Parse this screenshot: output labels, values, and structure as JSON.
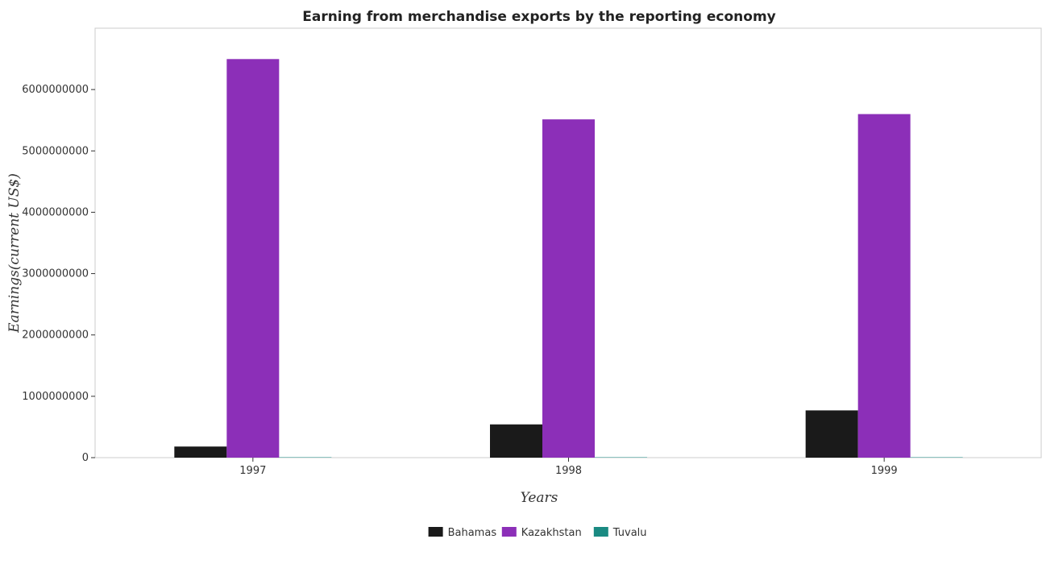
{
  "chart_data": {
    "type": "bar",
    "title": "Earning from merchandise exports by the reporting economy",
    "xlabel": "Years",
    "ylabel": "Earnings(current US$)",
    "categories": [
      "1997",
      "1998",
      "1999"
    ],
    "ylim": [
      0,
      7000000000
    ],
    "yticks": [
      0,
      1000000000,
      2000000000,
      3000000000,
      4000000000,
      5000000000,
      6000000000
    ],
    "ytick_labels": [
      "0",
      "1000000000",
      "2000000000",
      "3000000000",
      "4000000000",
      "5000000000",
      "6000000000"
    ],
    "grid": false,
    "legend_position": "bottom-center",
    "series": [
      {
        "name": "Bahamas",
        "color": "#1a1a1a",
        "values": [
          181000000,
          542000000,
          770000000
        ]
      },
      {
        "name": "Kazakhstan",
        "color": "#8c2fb8",
        "values": [
          6497000000,
          5514000000,
          5600000000
        ]
      },
      {
        "name": "Tuvalu",
        "color": "#1a8a82",
        "values": [
          200000,
          200000,
          200000
        ]
      }
    ]
  }
}
